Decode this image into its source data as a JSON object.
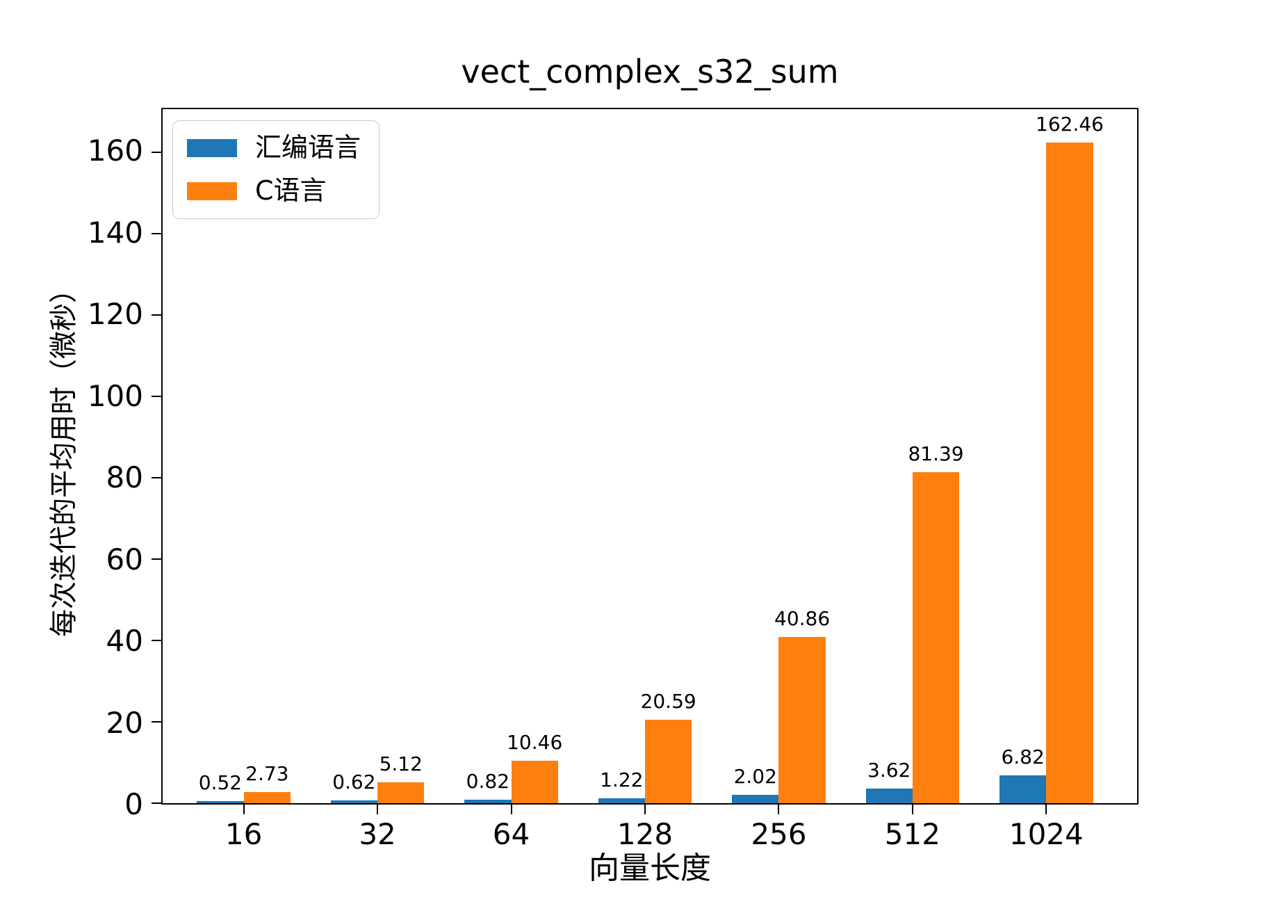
{
  "chart_data": {
    "type": "bar",
    "title": "vect_complex_s32_sum",
    "xlabel": "向量长度",
    "ylabel": "每次迭代的平均用时（微秒）",
    "categories": [
      "16",
      "32",
      "64",
      "128",
      "256",
      "512",
      "1024"
    ],
    "series": [
      {
        "name": "汇编语言",
        "color": "#1f77b4",
        "values": [
          0.52,
          0.62,
          0.82,
          1.22,
          2.02,
          3.62,
          6.82
        ],
        "labels": [
          "0.52",
          "0.62",
          "0.82",
          "1.22",
          "2.02",
          "3.62",
          "6.82"
        ]
      },
      {
        "name": "C语言",
        "color": "#ff7f0e",
        "values": [
          2.73,
          5.12,
          10.46,
          20.59,
          40.86,
          81.39,
          162.46
        ],
        "labels": [
          "2.73",
          "5.12",
          "10.46",
          "20.59",
          "40.86",
          "81.39",
          "162.46"
        ]
      }
    ],
    "y_ticks": [
      "0",
      "20",
      "40",
      "60",
      "80",
      "100",
      "120",
      "140",
      "160"
    ],
    "y_tick_values": [
      0,
      20,
      40,
      60,
      80,
      100,
      120,
      140,
      160
    ],
    "ylim": [
      0,
      170.6
    ],
    "bar_width": 0.35,
    "legend_position": "upper-left",
    "grid": false
  }
}
